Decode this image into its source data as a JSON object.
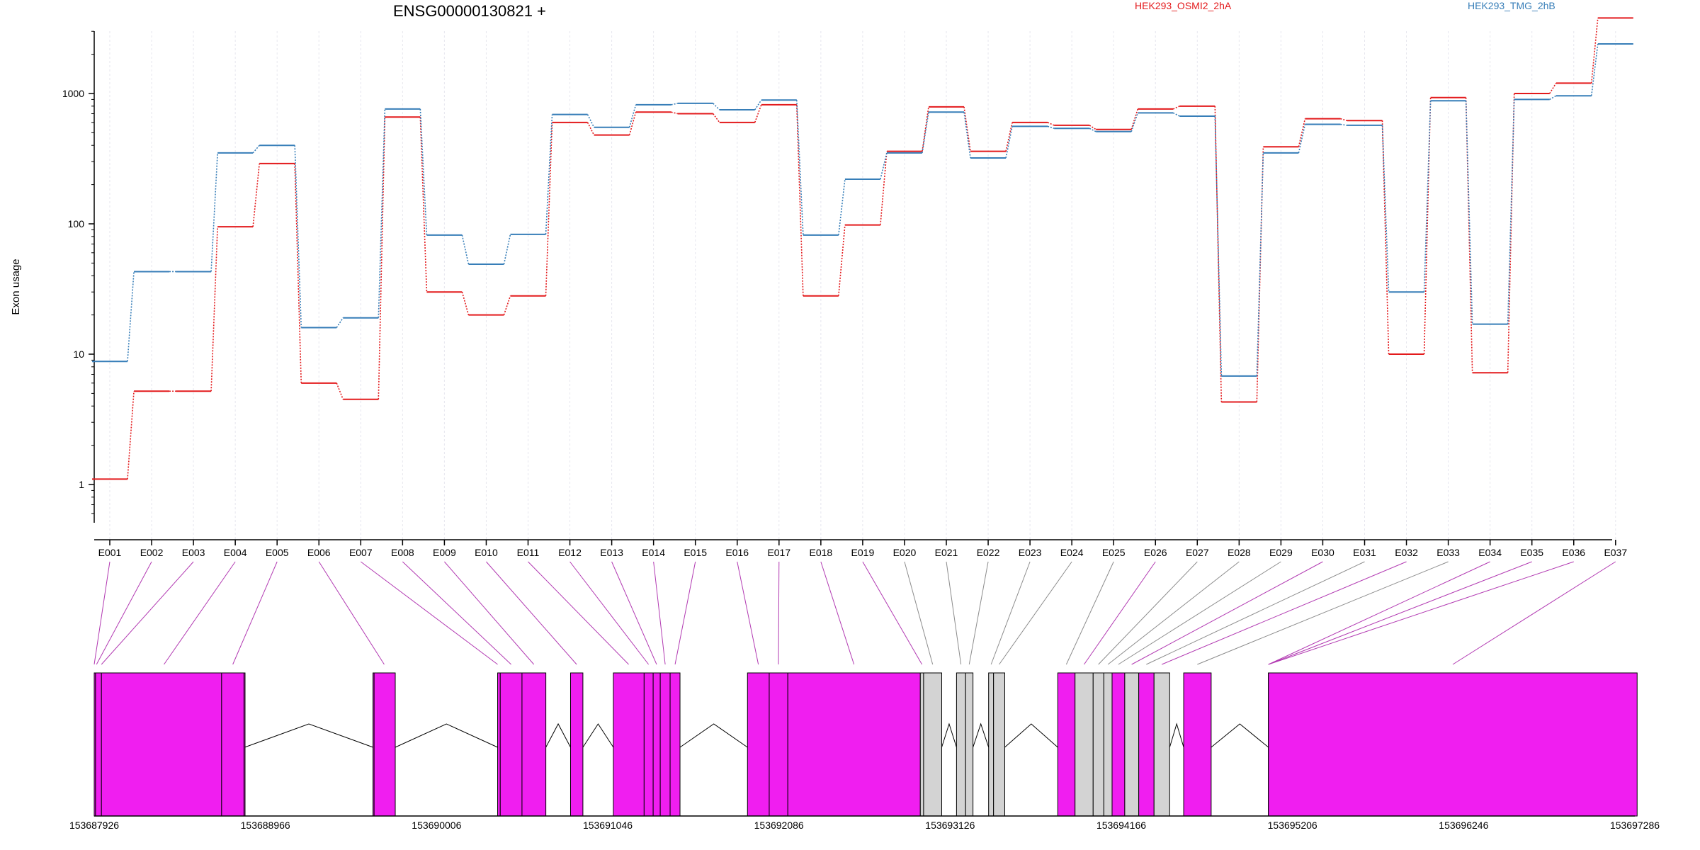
{
  "chart_data": {
    "type": "line",
    "title": "ENSG00000130821 +",
    "ylabel": "Exon usage",
    "yscale": "log",
    "yticks": [
      1,
      10,
      100,
      1000
    ],
    "ytick_labels": [
      "1",
      "10",
      "100",
      "1000"
    ],
    "grid": "vertical dashed at each exon",
    "legend_placement": "top-right",
    "categories": [
      "E001",
      "E002",
      "E003",
      "E004",
      "E005",
      "E006",
      "E007",
      "E008",
      "E009",
      "E010",
      "E011",
      "E012",
      "E013",
      "E014",
      "E015",
      "E016",
      "E017",
      "E018",
      "E019",
      "E020",
      "E021",
      "E022",
      "E023",
      "E024",
      "E025",
      "E026",
      "E027",
      "E028",
      "E029",
      "E030",
      "E031",
      "E032",
      "E033",
      "E034",
      "E035",
      "E036",
      "E037"
    ],
    "series": [
      {
        "name": "HEK293_OSMI2_2hA",
        "color": "#e31a1c",
        "values": [
          1.1,
          5.2,
          5.2,
          95,
          290,
          6,
          4.5,
          660,
          30,
          20,
          28,
          600,
          480,
          720,
          700,
          600,
          820,
          28,
          98,
          360,
          790,
          360,
          600,
          570,
          530,
          760,
          800,
          4.3,
          390,
          640,
          620,
          10,
          930,
          7.2,
          1000,
          1200,
          3800
        ]
      },
      {
        "name": "HEK293_TMG_2hB",
        "color": "#377eb8",
        "values": [
          8.8,
          43,
          43,
          350,
          400,
          16,
          19,
          760,
          82,
          49,
          83,
          690,
          550,
          820,
          840,
          750,
          890,
          82,
          220,
          350,
          720,
          320,
          560,
          540,
          510,
          710,
          670,
          6.8,
          350,
          580,
          570,
          30,
          880,
          17,
          900,
          960,
          2400
        ]
      }
    ],
    "genomic_axis": {
      "ticks": [
        "153687926",
        "153688966",
        "153690006",
        "153691046",
        "153692086",
        "153693126",
        "153694166",
        "153695206",
        "153696246",
        "153697286"
      ]
    },
    "gene_model_colors": {
      "tested": "#f01ef0",
      "not_tested": "#d3d3d3"
    },
    "exon_blocks": [
      {
        "id": "E001",
        "start": 153687926,
        "end": 153687934,
        "tested": true
      },
      {
        "id": "E002",
        "start": 153687934,
        "end": 153687970,
        "tested": true
      },
      {
        "id": "E003",
        "start": 153687970,
        "end": 153688700,
        "tested": true
      },
      {
        "id": "E004",
        "start": 153688700,
        "end": 153688836,
        "tested": true
      },
      {
        "id": "E005",
        "start": 153688836,
        "end": 153688836,
        "tested": true
      },
      {
        "id": "E006",
        "start": 153689620,
        "end": 153689755,
        "tested": true
      },
      {
        "id": "E007",
        "start": 153689620,
        "end": 153689620,
        "tested": true
      },
      {
        "id": "E008",
        "start": 153690377,
        "end": 153690393,
        "tested": true
      },
      {
        "id": "E009",
        "start": 153690393,
        "end": 153690525,
        "tested": true
      },
      {
        "id": "E010",
        "start": 153690525,
        "end": 153690670,
        "tested": true
      },
      {
        "id": "E011",
        "start": 153690820,
        "end": 153690895,
        "tested": true
      },
      {
        "id": "E012",
        "start": 153691080,
        "end": 153691267,
        "tested": true
      },
      {
        "id": "E013",
        "start": 153691267,
        "end": 153691322,
        "tested": true
      },
      {
        "id": "E014",
        "start": 153691322,
        "end": 153691365,
        "tested": true
      },
      {
        "id": "E015",
        "start": 153691365,
        "end": 153691425,
        "tested": true
      },
      {
        "id": "E016",
        "start": 153691425,
        "end": 153691485,
        "tested": true
      },
      {
        "id": "E017",
        "start": 153691895,
        "end": 153692027,
        "tested": true
      },
      {
        "id": "E018",
        "start": 153692027,
        "end": 153692140,
        "tested": true
      },
      {
        "id": "E019",
        "start": 153692140,
        "end": 153692945,
        "tested": true
      },
      {
        "id": "E020",
        "start": 153692945,
        "end": 153692965,
        "tested": false
      },
      {
        "id": "E021",
        "start": 153692965,
        "end": 153693075,
        "tested": false
      },
      {
        "id": "E022",
        "start": 153693165,
        "end": 153693220,
        "tested": false
      },
      {
        "id": "E023",
        "start": 153693220,
        "end": 153693265,
        "tested": false
      },
      {
        "id": "E024",
        "start": 153693360,
        "end": 153693390,
        "tested": false
      },
      {
        "id": "E025",
        "start": 153693390,
        "end": 153693458,
        "tested": false
      },
      {
        "id": "E026",
        "start": 153693780,
        "end": 153693885,
        "tested": true
      },
      {
        "id": "E027",
        "start": 153693885,
        "end": 153693995,
        "tested": false
      },
      {
        "id": "E028",
        "start": 153693995,
        "end": 153694060,
        "tested": false
      },
      {
        "id": "E029",
        "start": 153694060,
        "end": 153694110,
        "tested": false
      },
      {
        "id": "E030",
        "start": 153694110,
        "end": 153694187,
        "tested": true
      },
      {
        "id": "E031",
        "start": 153694187,
        "end": 153694272,
        "tested": false
      },
      {
        "id": "E032",
        "start": 153694272,
        "end": 153694365,
        "tested": true
      },
      {
        "id": "E033",
        "start": 153694365,
        "end": 153694460,
        "tested": false
      },
      {
        "id": "E034",
        "start": 153694545,
        "end": 153694712,
        "tested": true
      },
      {
        "id": "E035",
        "start": 153695060,
        "end": 153695060,
        "tested": true
      },
      {
        "id": "E036",
        "start": 153695060,
        "end": 153695060,
        "tested": true
      },
      {
        "id": "E037",
        "start": 153695060,
        "end": 153697300,
        "tested": true
      }
    ],
    "exon_label_points": [
      153687926,
      153687940,
      153687970,
      153688350,
      153688768,
      153689688,
      153690377,
      153690459,
      153690597,
      153690857,
      153691173,
      153691294,
      153691343,
      153691395,
      153691455,
      153691961,
      153692083,
      153692542,
      153692955,
      153693020,
      153693192,
      153693242,
      153693375,
      153693424,
      153693832,
      153693940,
      153694027,
      153694085,
      153694148,
      153694229,
      153694318,
      153694412,
      153694628,
      153695060,
      153695060,
      153695060,
      153696180
    ]
  }
}
